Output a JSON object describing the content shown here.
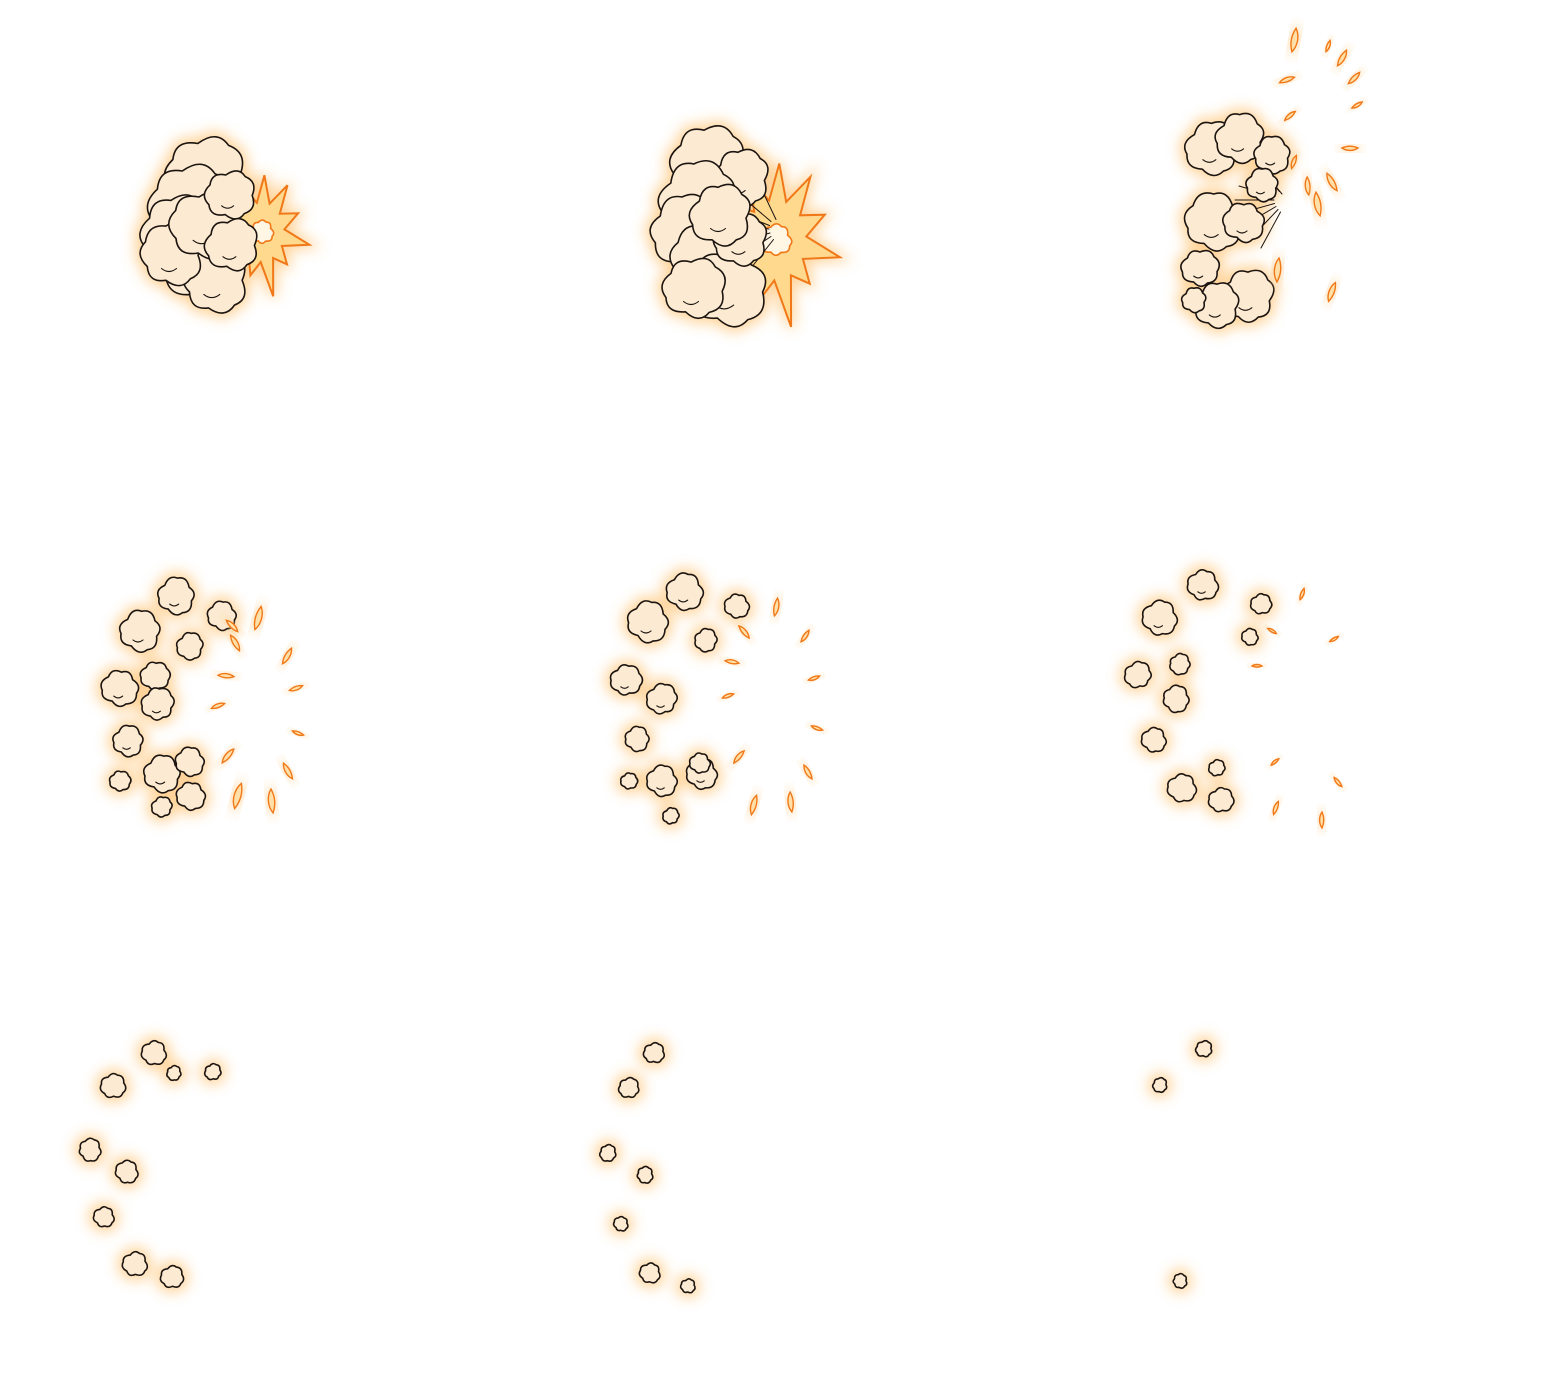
{
  "sprite_sheet": {
    "columns": 3,
    "rows": 3,
    "colors": {
      "background": "#ffffff",
      "smoke_fill": "#fcebd2",
      "smoke_stroke": "#1b1410",
      "glow": "#ffcf8e",
      "flash_fill": "#ffd98d",
      "flash_stroke": "#f07818",
      "spark_fill": "#ffe0a8",
      "spark_stroke": "#f07818",
      "speed_line": "#1b1410"
    },
    "icons": {
      "smoke": "smoke-puff-icon",
      "flash": "explosion-flash-icon",
      "spark": "flame-spark-icon",
      "lines": "speed-lines-icon"
    },
    "frames": [
      {
        "index": 1,
        "flash_size": 1.0,
        "smoke_level": 1.0,
        "spark_count": 0,
        "speed_lines": true
      },
      {
        "index": 2,
        "flash_size": 1.35,
        "smoke_level": 1.0,
        "spark_count": 0,
        "speed_lines": true
      },
      {
        "index": 3,
        "flash_size": 0,
        "smoke_level": 0.85,
        "spark_count": 14,
        "speed_lines": true
      },
      {
        "index": 4,
        "flash_size": 0,
        "smoke_level": 0.7,
        "spark_count": 12,
        "speed_lines": false
      },
      {
        "index": 5,
        "flash_size": 0,
        "smoke_level": 0.55,
        "spark_count": 11,
        "speed_lines": false
      },
      {
        "index": 6,
        "flash_size": 0,
        "smoke_level": 0.4,
        "spark_count": 8,
        "speed_lines": false
      },
      {
        "index": 7,
        "flash_size": 0,
        "smoke_level": 0.25,
        "spark_count": 0,
        "speed_lines": false
      },
      {
        "index": 8,
        "flash_size": 0,
        "smoke_level": 0.15,
        "spark_count": 0,
        "speed_lines": false
      },
      {
        "index": 9,
        "flash_size": 0,
        "smoke_level": 0.06,
        "spark_count": 0,
        "speed_lines": false
      }
    ]
  }
}
